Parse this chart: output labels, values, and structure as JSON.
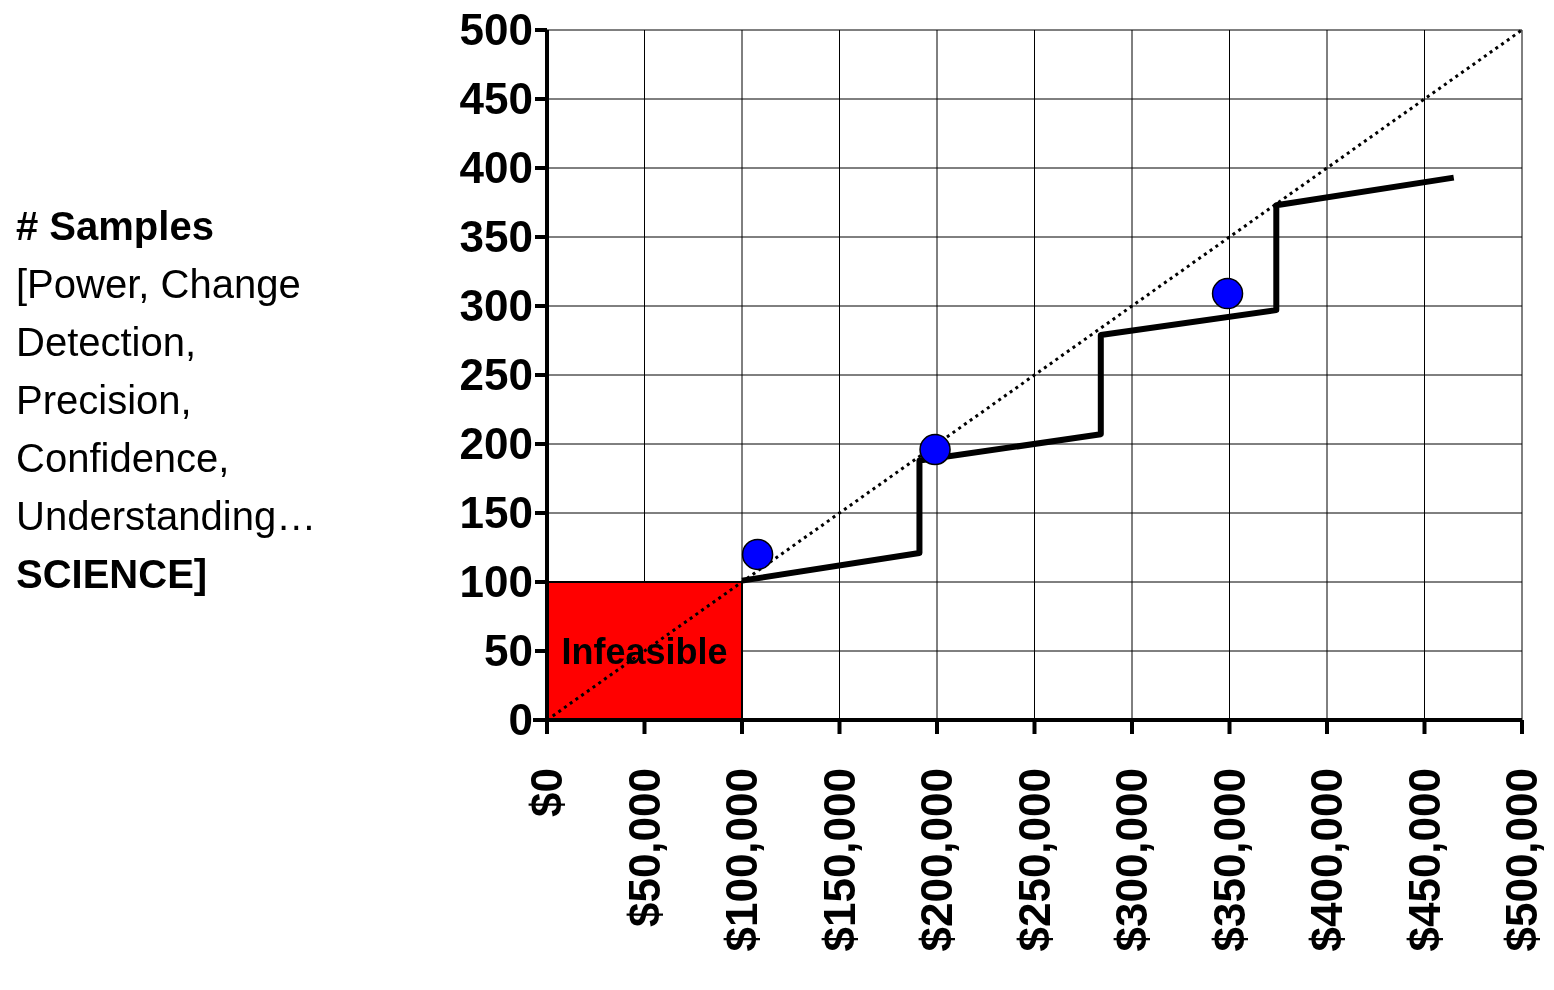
{
  "chart_data": {
    "type": "line",
    "ylabel": "# Samples\n[Power, Change\nDetection,\nPrecision,\nConfidence,\nUnderstanding…\nSCIENCE]",
    "xlim": [
      0,
      500000
    ],
    "ylim": [
      0,
      500
    ],
    "xticks": [
      {
        "value": 0,
        "label": "$0"
      },
      {
        "value": 50000,
        "label": "$50,000"
      },
      {
        "value": 100000,
        "label": "$100,000"
      },
      {
        "value": 150000,
        "label": "$150,000"
      },
      {
        "value": 200000,
        "label": "$200,000"
      },
      {
        "value": 250000,
        "label": "$250,000"
      },
      {
        "value": 300000,
        "label": "$300,000"
      },
      {
        "value": 350000,
        "label": "$350,000"
      },
      {
        "value": 400000,
        "label": "$400,000"
      },
      {
        "value": 450000,
        "label": "$450,000"
      },
      {
        "value": 500000,
        "label": "$500,000"
      }
    ],
    "yticks": [
      0,
      50,
      100,
      150,
      200,
      250,
      300,
      350,
      400,
      450,
      500
    ],
    "grid": true,
    "series": [
      {
        "type": "area",
        "color": "#ff0000",
        "x": [
          0,
          100000
        ],
        "values": [
          100,
          100
        ]
      },
      {
        "type": "line",
        "color": "#000000",
        "line_style": "dotted",
        "x": [
          0,
          500000
        ],
        "values": [
          0,
          500
        ]
      },
      {
        "color": "#000000",
        "line_style": "solid",
        "x": [
          100000,
          191000,
          191000,
          284000,
          284000,
          374000,
          374000,
          465000
        ],
        "values": [
          101,
          121,
          188,
          207,
          279,
          297,
          373,
          393
        ]
      },
      {
        "type": "scatter",
        "color": "#0000ff",
        "marker": "circle",
        "x": [
          108000,
          199000,
          349000
        ],
        "values": [
          120,
          196,
          309
        ]
      }
    ],
    "annotations": [
      {
        "text": "Infeasible",
        "x": 50000,
        "y": 50
      }
    ]
  }
}
